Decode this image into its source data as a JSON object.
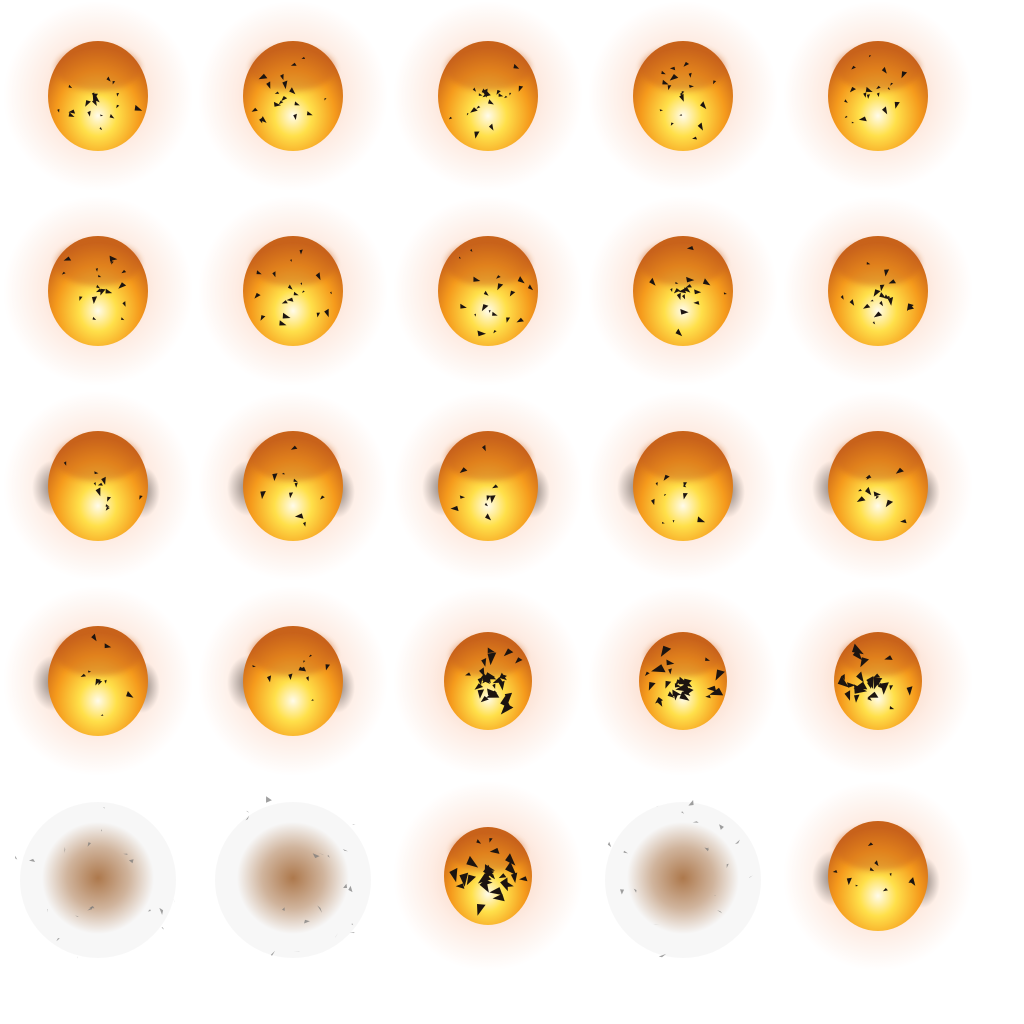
{
  "sprite_sheet": {
    "grid": {
      "columns": 5,
      "rows": 5
    },
    "background_color": "#ffffff",
    "colors": {
      "core_white": "#fffbea",
      "core_yellow": "#ffe04a",
      "mid_orange": "#f59a1c",
      "rim_orange": "#c8621a",
      "glow": "#f79a6a",
      "smoke_brown": "#a0622e",
      "debris": "#1c1410"
    },
    "frame_kinds": [
      "fireball-debris",
      "fireball-debris",
      "fireball-debris",
      "fireball-debris",
      "fireball-debris",
      "fireball-debris",
      "fireball-debris",
      "fireball-debris",
      "fireball-debris",
      "fireball-debris",
      "fireball-smoky",
      "fireball-smoky",
      "fireball-smoky",
      "fireball-smoky",
      "fireball-smoky",
      "fireball-smoky",
      "fireball-smoky",
      "fireball-debris-dense",
      "fireball-debris-dense",
      "fireball-debris-dense",
      "smoke-cloud",
      "smoke-cloud",
      "fireball-debris-dense",
      "smoke-cloud",
      "fireball-smoky"
    ]
  }
}
